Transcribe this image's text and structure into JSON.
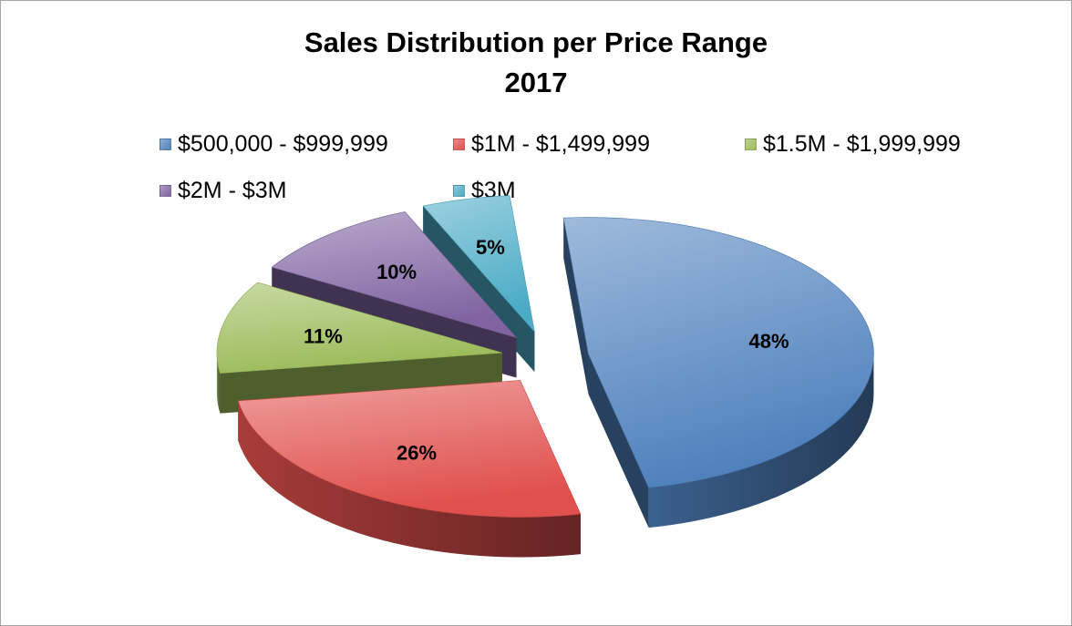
{
  "chart_data": {
    "type": "pie",
    "title": "Sales Distribution per Price Range",
    "subtitle": "2017",
    "slices": [
      {
        "label": "$500,000 - $999,999",
        "value": 48,
        "data_label": "48%",
        "color": "#4f81bd"
      },
      {
        "label": "$1M - $1,499,999",
        "value": 26,
        "data_label": "26%",
        "color": "#e0504d"
      },
      {
        "label": "$1.5M - $1,999,999",
        "value": 11,
        "data_label": "11%",
        "color": "#9bbb59"
      },
      {
        "label": "$2M - $3M",
        "value": 10,
        "data_label": "10%",
        "color": "#8064a2"
      },
      {
        "label": "$3M",
        "value": 5,
        "data_label": "5%",
        "color": "#4bacc6"
      }
    ],
    "legend_placement": "top",
    "exploded": true,
    "three_d": true
  }
}
